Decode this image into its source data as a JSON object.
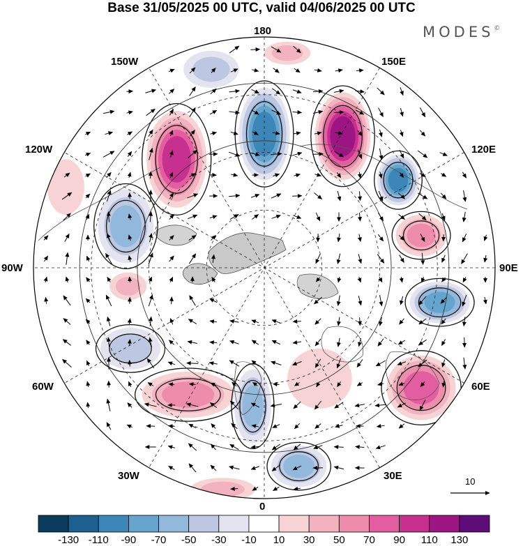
{
  "title": "Base 31/05/2025 00 UTC, valid 04/06/2025 00 UTC",
  "brand": "MODES",
  "brand_mark": "©",
  "longitude_labels": {
    "n180": "180",
    "w150": "150W",
    "e150": "150E",
    "w120": "120W",
    "e120": "120E",
    "w90": "90W",
    "e90": "90E",
    "w60": "60W",
    "e60": "60E",
    "w30": "30W",
    "e30": "30E",
    "s0": "0"
  },
  "reference_vector": {
    "label": "10",
    "icon": "arrow-right-icon"
  },
  "colorbar": {
    "colors": [
      "#0b3b5c",
      "#1d5f8f",
      "#3d86b8",
      "#65a4cd",
      "#92b8dc",
      "#bdc7e2",
      "#e4e4f1",
      "#ffffff",
      "#f8d3d6",
      "#f3b2bf",
      "#ee8cab",
      "#e35ea0",
      "#c8308f",
      "#9c1582",
      "#5e0c78"
    ],
    "tick_labels": [
      "-130",
      "-110",
      "-90",
      "-70",
      "-50",
      "-30",
      "-10",
      "10",
      "30",
      "50",
      "70",
      "90",
      "110",
      "130"
    ]
  },
  "anomaly_blobs": [
    {
      "dx": 0.0,
      "dy": -0.58,
      "r1": 0.11,
      "r2": 0.2,
      "peak": -90
    },
    {
      "dx": 0.34,
      "dy": -0.57,
      "r1": 0.12,
      "r2": 0.19,
      "peak": 120
    },
    {
      "dx": 0.58,
      "dy": -0.38,
      "r1": 0.09,
      "r2": 0.11,
      "peak": -90
    },
    {
      "dx": 0.68,
      "dy": -0.14,
      "r1": 0.11,
      "r2": 0.09,
      "peak": 55
    },
    {
      "dx": 0.76,
      "dy": 0.15,
      "r1": 0.13,
      "r2": 0.09,
      "peak": -75
    },
    {
      "dx": 0.68,
      "dy": 0.52,
      "r1": 0.15,
      "r2": 0.14,
      "peak": 70
    },
    {
      "dx": 0.24,
      "dy": 0.48,
      "r1": 0.14,
      "r2": 0.13,
      "peak": 25
    },
    {
      "dx": -0.05,
      "dy": 0.6,
      "r1": 0.08,
      "r2": 0.16,
      "peak": -55
    },
    {
      "dx": 0.15,
      "dy": 0.86,
      "r1": 0.12,
      "r2": 0.09,
      "peak": -60
    },
    {
      "dx": -0.33,
      "dy": 0.55,
      "r1": 0.2,
      "r2": 0.1,
      "peak": 50
    },
    {
      "dx": -0.58,
      "dy": 0.35,
      "r1": 0.13,
      "r2": 0.09,
      "peak": -40
    },
    {
      "dx": -0.59,
      "dy": 0.08,
      "r1": 0.08,
      "r2": 0.06,
      "peak": 30
    },
    {
      "dx": -0.6,
      "dy": -0.18,
      "r1": 0.12,
      "r2": 0.16,
      "peak": -60
    },
    {
      "dx": -0.38,
      "dy": -0.47,
      "r1": 0.13,
      "r2": 0.21,
      "peak": 95
    },
    {
      "dx": -0.23,
      "dy": -0.86,
      "r1": 0.12,
      "r2": 0.08,
      "peak": -30
    },
    {
      "dx": 0.1,
      "dy": -0.93,
      "r1": 0.1,
      "r2": 0.05,
      "peak": 35
    },
    {
      "dx": -0.86,
      "dy": -0.35,
      "r1": 0.08,
      "r2": 0.12,
      "peak": 25
    },
    {
      "dx": -0.18,
      "dy": 0.96,
      "r1": 0.14,
      "r2": 0.05,
      "peak": 30
    }
  ]
}
